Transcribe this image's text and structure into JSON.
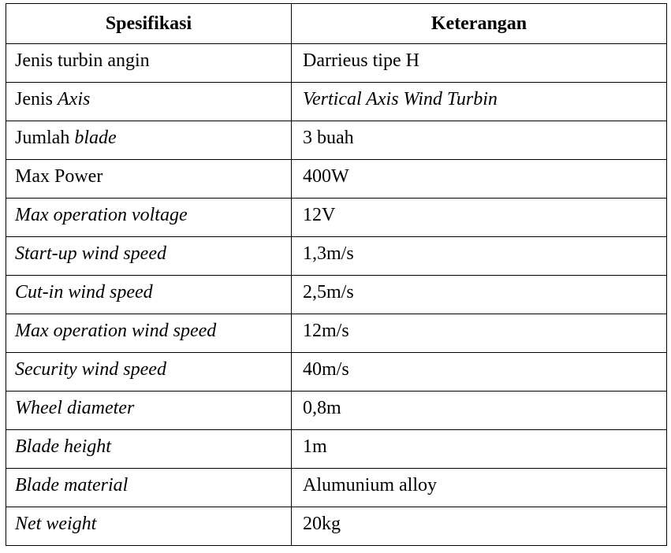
{
  "table": {
    "headers": [
      "Spesifikasi",
      "Keterangan"
    ],
    "rows": [
      {
        "spec": [
          {
            "text": "Jenis turbin angin",
            "italic": false
          }
        ],
        "value": [
          {
            "text": "Darrieus tipe H",
            "italic": false
          }
        ]
      },
      {
        "spec": [
          {
            "text": "Jenis ",
            "italic": false
          },
          {
            "text": "Axis",
            "italic": true
          }
        ],
        "value": [
          {
            "text": "Vertical Axis Wind Turbin",
            "italic": true
          }
        ]
      },
      {
        "spec": [
          {
            "text": "Jumlah ",
            "italic": false
          },
          {
            "text": "blade",
            "italic": true
          }
        ],
        "value": [
          {
            "text": "3 buah",
            "italic": false
          }
        ]
      },
      {
        "spec": [
          {
            "text": "Max Power",
            "italic": false
          }
        ],
        "value": [
          {
            "text": "400W",
            "italic": false
          }
        ]
      },
      {
        "spec": [
          {
            "text": "Max operation voltage",
            "italic": true
          }
        ],
        "value": [
          {
            "text": "12V",
            "italic": false
          }
        ]
      },
      {
        "spec": [
          {
            "text": "Start-up wind speed",
            "italic": true
          }
        ],
        "value": [
          {
            "text": "1,3m/s",
            "italic": false
          }
        ]
      },
      {
        "spec": [
          {
            "text": "Cut-in wind speed",
            "italic": true
          }
        ],
        "value": [
          {
            "text": "2,5m/s",
            "italic": false
          }
        ]
      },
      {
        "spec": [
          {
            "text": "Max operation wind speed",
            "italic": true
          }
        ],
        "value": [
          {
            "text": "12m/s",
            "italic": false
          }
        ]
      },
      {
        "spec": [
          {
            "text": "Security wind speed",
            "italic": true
          }
        ],
        "value": [
          {
            "text": "40m/s",
            "italic": false
          }
        ]
      },
      {
        "spec": [
          {
            "text": "Wheel diameter",
            "italic": true
          }
        ],
        "value": [
          {
            "text": "0,8m",
            "italic": false
          }
        ]
      },
      {
        "spec": [
          {
            "text": "Blade height",
            "italic": true
          }
        ],
        "value": [
          {
            "text": "1m",
            "italic": false
          }
        ]
      },
      {
        "spec": [
          {
            "text": "Blade material",
            "italic": true
          }
        ],
        "value": [
          {
            "text": "Alumunium alloy",
            "italic": false
          }
        ]
      },
      {
        "spec": [
          {
            "text": "Net weight",
            "italic": true
          }
        ],
        "value": [
          {
            "text": "20kg",
            "italic": false
          }
        ]
      }
    ]
  }
}
